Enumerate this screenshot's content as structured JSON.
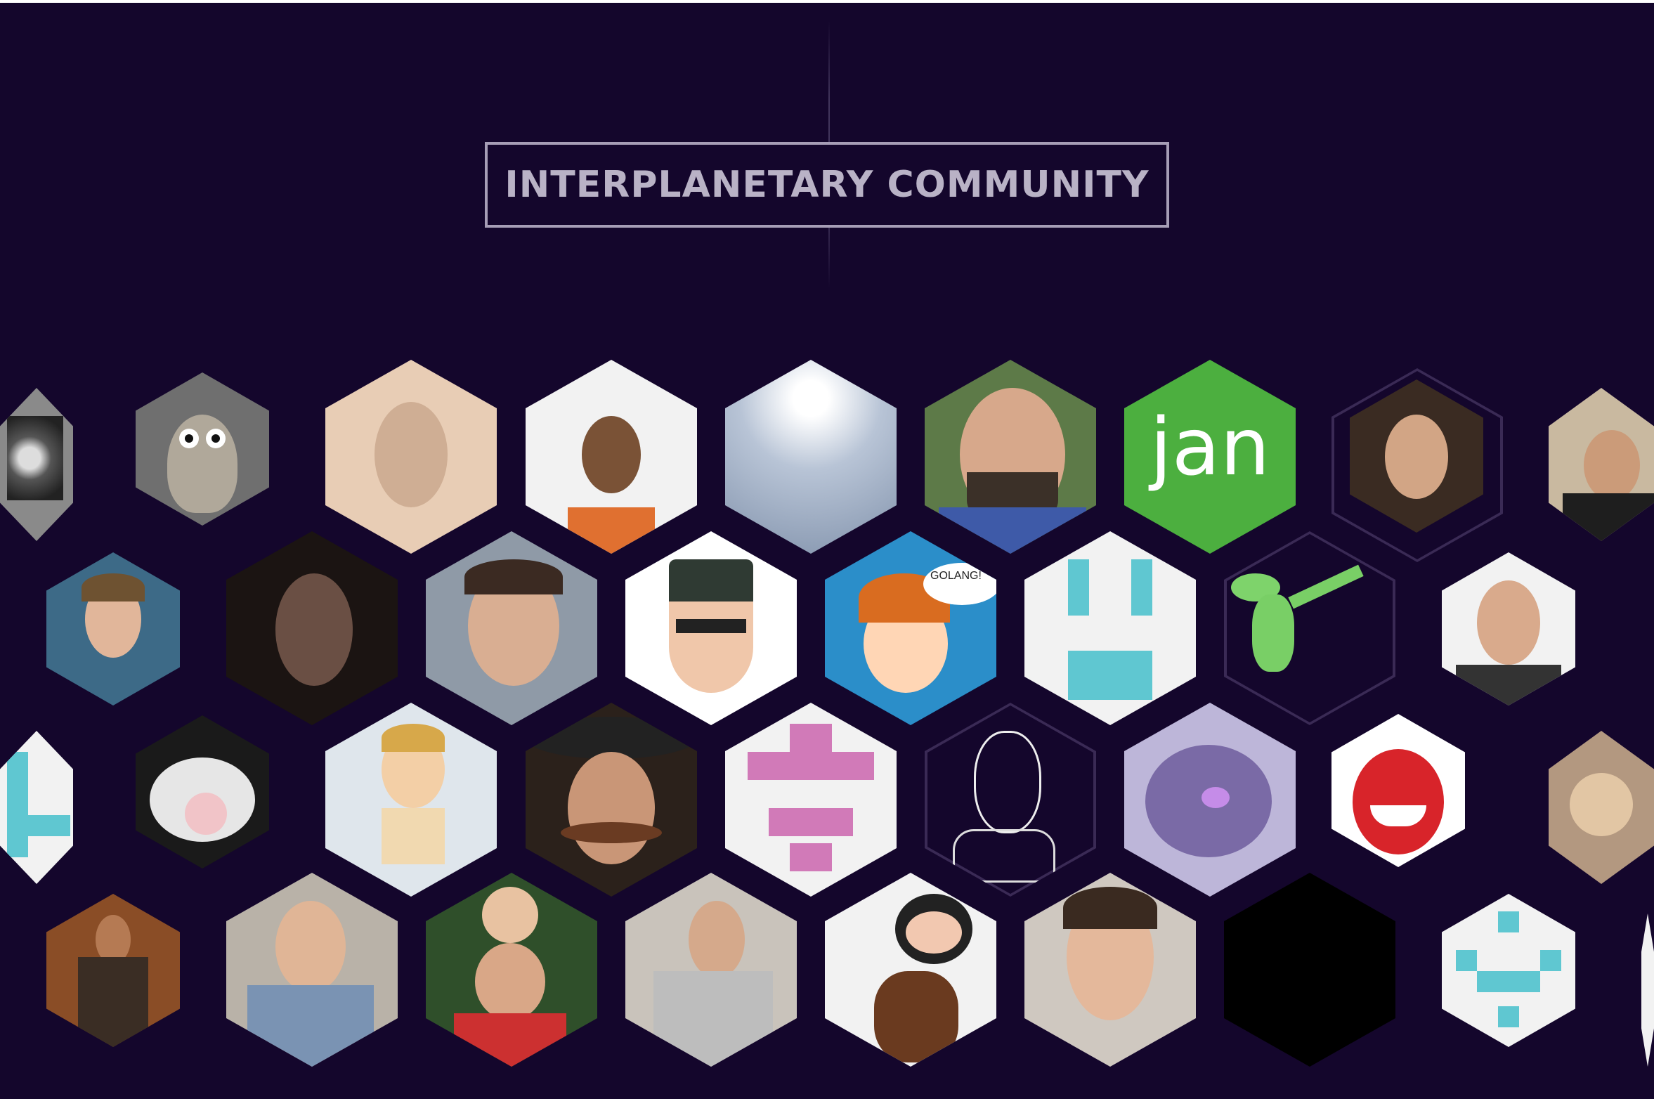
{
  "title": "INTERPLANETARY COMMUNITY",
  "avatars": {
    "jan_label": "jan",
    "golang_label": "GOLANG!"
  },
  "colors": {
    "background": "#14062c",
    "title_border": "#a69db6",
    "title_text": "#b9b2c6",
    "jan_green": "#4caf3f",
    "identicon_teal": "#5fc7d1",
    "identicon_pink": "#d17ab8"
  }
}
